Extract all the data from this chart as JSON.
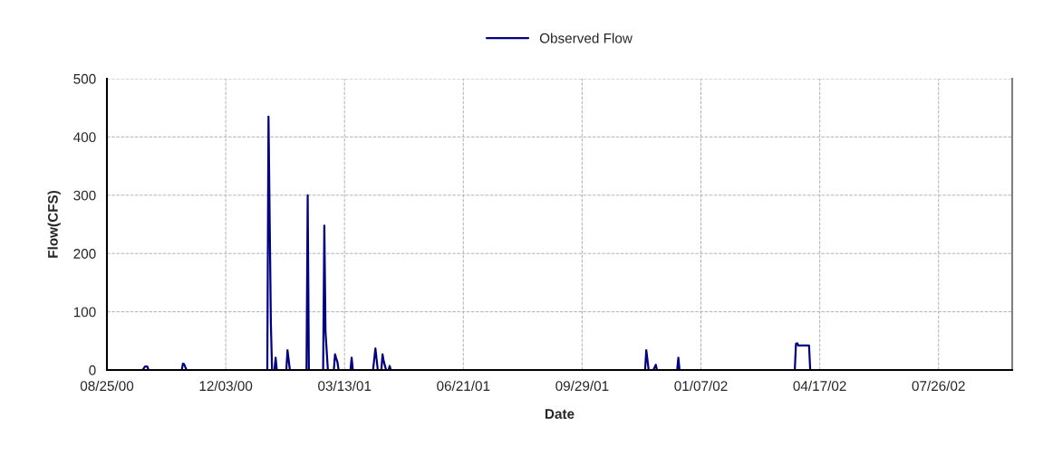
{
  "chart_data": {
    "type": "line",
    "xlabel": "Date",
    "ylabel": "Flow(CFS)",
    "x": [
      "2000-08-25",
      "2000-09-24",
      "2000-09-26",
      "2000-09-28",
      "2000-09-29",
      "2000-10-27",
      "2000-10-28",
      "2000-10-29",
      "2000-10-31",
      "2001-01-07",
      "2001-01-08",
      "2001-01-10",
      "2001-01-11",
      "2001-01-13",
      "2001-01-14",
      "2001-01-15",
      "2001-01-23",
      "2001-01-24",
      "2001-01-26",
      "2001-02-09",
      "2001-02-10",
      "2001-02-11",
      "2001-02-23",
      "2001-02-24",
      "2001-02-25",
      "2001-02-27",
      "2001-03-04",
      "2001-03-05",
      "2001-03-06",
      "2001-03-07",
      "2001-03-08",
      "2001-03-18",
      "2001-03-19",
      "2001-03-20",
      "2001-04-06",
      "2001-04-08",
      "2001-04-10",
      "2001-04-13",
      "2001-04-14",
      "2001-04-15",
      "2001-04-17",
      "2001-04-19",
      "2001-04-20",
      "2001-04-21",
      "2001-11-21",
      "2001-11-22",
      "2001-11-24",
      "2001-11-28",
      "2001-11-30",
      "2001-12-01",
      "2001-12-18",
      "2001-12-19",
      "2001-12-20",
      "2002-03-27",
      "2002-03-28",
      "2002-03-29",
      "2002-03-30",
      "2002-04-08",
      "2002-04-09",
      "2002-09-26"
    ],
    "series": [
      {
        "name": "Observed Flow",
        "color": "#000080",
        "values": [
          0,
          0,
          6,
          6,
          0,
          0,
          11,
          10,
          0,
          0,
          435,
          80,
          0,
          0,
          21,
          0,
          0,
          34,
          0,
          0,
          300,
          0,
          0,
          248,
          65,
          0,
          0,
          27,
          20,
          14,
          0,
          0,
          21,
          0,
          0,
          37,
          0,
          0,
          27,
          15,
          0,
          0,
          7,
          0,
          0,
          34,
          0,
          0,
          9,
          0,
          0,
          21,
          0,
          0,
          45,
          46,
          42,
          42,
          0,
          0
        ]
      }
    ],
    "xlim": [
      "2000-08-25",
      "2002-09-26"
    ],
    "xticks": [
      {
        "value": "2000-08-25",
        "label": "08/25/00"
      },
      {
        "value": "2000-12-03",
        "label": "12/03/00"
      },
      {
        "value": "2001-03-13",
        "label": "03/13/01"
      },
      {
        "value": "2001-06-21",
        "label": "06/21/01"
      },
      {
        "value": "2001-09-29",
        "label": "09/29/01"
      },
      {
        "value": "2002-01-07",
        "label": "01/07/02"
      },
      {
        "value": "2002-04-17",
        "label": "04/17/02"
      },
      {
        "value": "2002-07-26",
        "label": "07/26/02"
      }
    ],
    "ylim": [
      0,
      500
    ],
    "yticks": [
      0,
      100,
      200,
      300,
      400,
      500
    ],
    "grid": true,
    "legend": "top",
    "marker": "none",
    "line_style": "solid"
  }
}
